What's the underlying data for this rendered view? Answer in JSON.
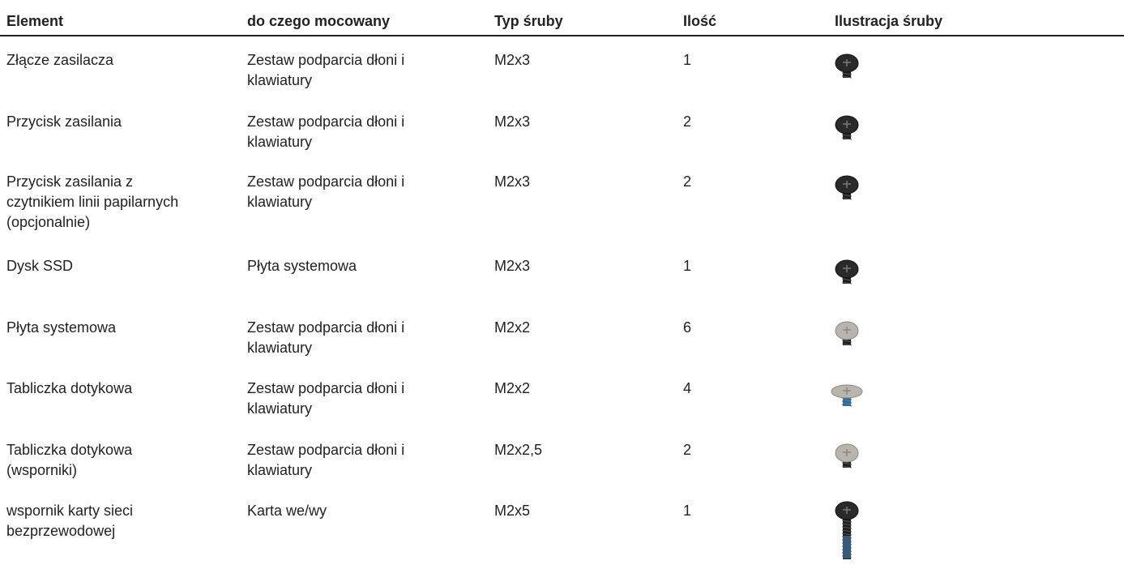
{
  "table": {
    "header": [
      "Element",
      "do czego mocowany",
      "Typ śruby",
      "Ilość",
      "Ilustracja śruby"
    ],
    "rows": [
      [
        [
          "Złącze zasilacza"
        ],
        [
          "Zestaw podparcia dłoni i",
          "klawiatury"
        ],
        [
          "M2x3"
        ],
        [
          "1"
        ]
      ],
      [
        [
          "Przycisk zasilania"
        ],
        [
          "Zestaw podparcia dłoni i",
          "klawiatury"
        ],
        [
          "M2x3"
        ],
        [
          "2"
        ]
      ],
      [
        [
          "Przycisk zasilania z",
          "czytnikiem linii papilarnych",
          "(opcjonalnie)"
        ],
        [
          "Zestaw podparcia dłoni i",
          "klawiatury"
        ],
        [
          "M2x3"
        ],
        [
          "2"
        ]
      ],
      [
        [
          "Dysk SSD"
        ],
        [
          "Płyta systemowa"
        ],
        [
          "M2x3"
        ],
        [
          "1"
        ]
      ],
      [
        [
          "Płyta systemowa"
        ],
        [
          "Zestaw podparcia dłoni i",
          "klawiatury"
        ],
        [
          "M2x2"
        ],
        [
          "6"
        ]
      ],
      [
        [
          "Tabliczka dotykowa"
        ],
        [
          "Zestaw podparcia dłoni i",
          "klawiatury"
        ],
        [
          "M2x2"
        ],
        [
          "4"
        ]
      ],
      [
        [
          "Tabliczka dotykowa",
          "(wsporniki)"
        ],
        [
          "Zestaw podparcia dłoni i",
          "klawiatury"
        ],
        [
          "M2x2,5"
        ],
        [
          "2"
        ]
      ],
      [
        [
          "wspornik karty sieci",
          "bezprzewodowej"
        ],
        [
          "Karta we/wy"
        ],
        [
          "M2x5"
        ],
        [
          "1"
        ]
      ]
    ]
  }
}
